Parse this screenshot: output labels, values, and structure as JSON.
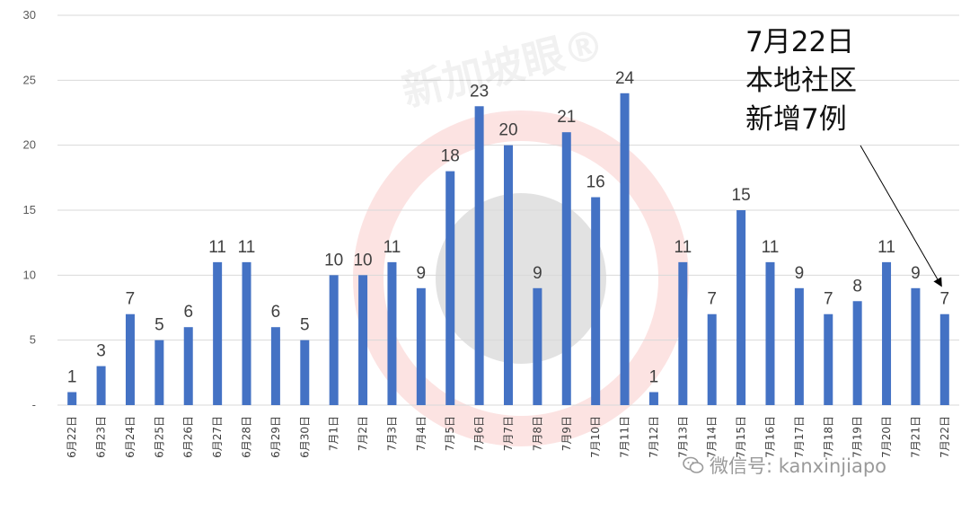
{
  "chart_data": {
    "type": "bar",
    "categories": [
      "6月22日",
      "6月23日",
      "6月24日",
      "6月25日",
      "6月26日",
      "6月27日",
      "6月28日",
      "6月29日",
      "6月30日",
      "7月1日",
      "7月2日",
      "7月3日",
      "7月4日",
      "7月5日",
      "7月6日",
      "7月7日",
      "7月8日",
      "7月9日",
      "7月10日",
      "7月11日",
      "7月12日",
      "7月13日",
      "7月14日",
      "7月15日",
      "7月16日",
      "7月17日",
      "7月18日",
      "7月19日",
      "7月20日",
      "7月21日",
      "7月22日"
    ],
    "values": [
      1,
      3,
      7,
      5,
      6,
      11,
      11,
      6,
      5,
      10,
      10,
      11,
      9,
      18,
      23,
      20,
      9,
      21,
      16,
      24,
      1,
      11,
      7,
      15,
      11,
      9,
      7,
      8,
      11,
      9,
      7
    ],
    "ylim": [
      0,
      30
    ],
    "yticks": [
      "-",
      "5",
      "10",
      "15",
      "20",
      "25",
      "30"
    ],
    "grid": true,
    "bar_color": "#4472c4",
    "annotation": {
      "lines": [
        "7月22日",
        "本地社区",
        "新增7例"
      ],
      "points_to": "7月22日"
    }
  },
  "watermark": {
    "text": "新加坡眼®"
  },
  "footer": {
    "wechat_text": "微信号: kanxinjiapo",
    "icon": "wechat-icon"
  }
}
